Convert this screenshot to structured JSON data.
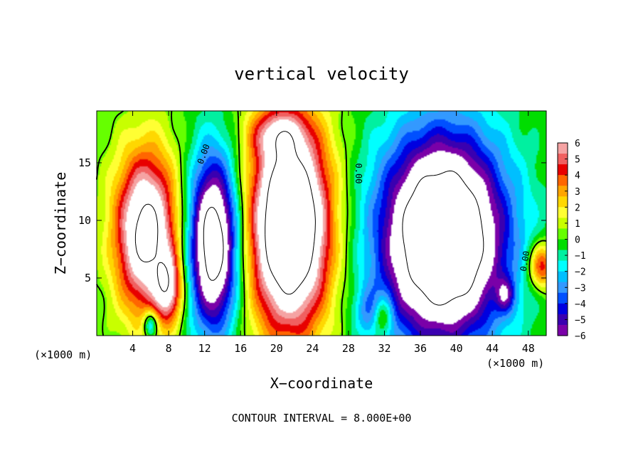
{
  "chart_data": {
    "type": "heatmap",
    "title": "vertical velocity",
    "xlabel": "X−coordinate",
    "ylabel": "Z−coordinate",
    "x_unit_left": "(×1000 m)",
    "x_unit_right": "(×1000 m)",
    "footer": "CONTOUR INTERVAL = 8.000E+00",
    "xlim": [
      0,
      50
    ],
    "ylim": [
      0,
      19.5
    ],
    "x_ticks": [
      4,
      8,
      12,
      16,
      20,
      24,
      28,
      32,
      36,
      40,
      44,
      48
    ],
    "x_tick_labels": [
      "4",
      "8",
      "12",
      "16",
      "20",
      "24",
      "28",
      "32",
      "36",
      "40",
      "44",
      "48"
    ],
    "y_ticks": [
      5,
      10,
      15
    ],
    "y_tick_labels": [
      "5",
      "10",
      "15"
    ],
    "colorbar": {
      "vmin": -6,
      "vmax": 6,
      "tick_values": [
        6,
        5,
        4,
        3,
        2,
        1,
        0,
        -1,
        -2,
        -3,
        -4,
        -5,
        -6
      ],
      "tick_labels": [
        "6",
        "5",
        "4",
        "3",
        "2",
        "1",
        "0",
        "−1",
        "−2",
        "−3",
        "−4",
        "−5",
        "−6"
      ],
      "colors": [
        "#f5a3a3",
        "#f06060",
        "#e80000",
        "#ff6600",
        "#ffa500",
        "#ffd700",
        "#ffff33",
        "#c8ff00",
        "#66ff00",
        "#00dd00",
        "#00f0a0",
        "#00ffff",
        "#00bfff",
        "#3399ff",
        "#0050ff",
        "#0000e0",
        "#3a00b0",
        "#7a00a8"
      ]
    },
    "contour_labels": [
      "0.00",
      "0.00",
      "0.00"
    ],
    "updrafts": [
      {
        "x": 5.5,
        "z": 9.0,
        "rx": 3.5,
        "rz": 7.0,
        "amp": 9
      },
      {
        "x": 8.0,
        "z": 4.0,
        "rx": 1.5,
        "rz": 3.0,
        "amp": 5
      },
      {
        "x": 21.5,
        "z": 9.5,
        "rx": 4.5,
        "rz": 9.0,
        "amp": 12
      },
      {
        "x": 20.0,
        "z": 17.5,
        "rx": 3.0,
        "rz": 2.0,
        "amp": 3
      },
      {
        "x": 31.8,
        "z": 1.8,
        "rx": 1.2,
        "rz": 1.8,
        "amp": 5
      },
      {
        "x": 49.5,
        "z": 6.0,
        "rx": 1.5,
        "rz": 2.0,
        "amp": 5
      }
    ],
    "downdrafts": [
      {
        "x": 13.0,
        "z": 8.0,
        "rx": 2.8,
        "rz": 7.5,
        "amp": 10
      },
      {
        "x": 38.5,
        "z": 8.5,
        "rx": 7.0,
        "rz": 9.0,
        "amp": 12
      },
      {
        "x": 31.0,
        "z": 2.0,
        "rx": 2.0,
        "rz": 2.0,
        "amp": 3
      },
      {
        "x": 45.5,
        "z": 3.5,
        "rx": 1.0,
        "rz": 1.5,
        "amp": 3
      },
      {
        "x": 6.0,
        "z": 1.0,
        "rx": 0.8,
        "rz": 1.2,
        "amp": 4
      }
    ]
  }
}
